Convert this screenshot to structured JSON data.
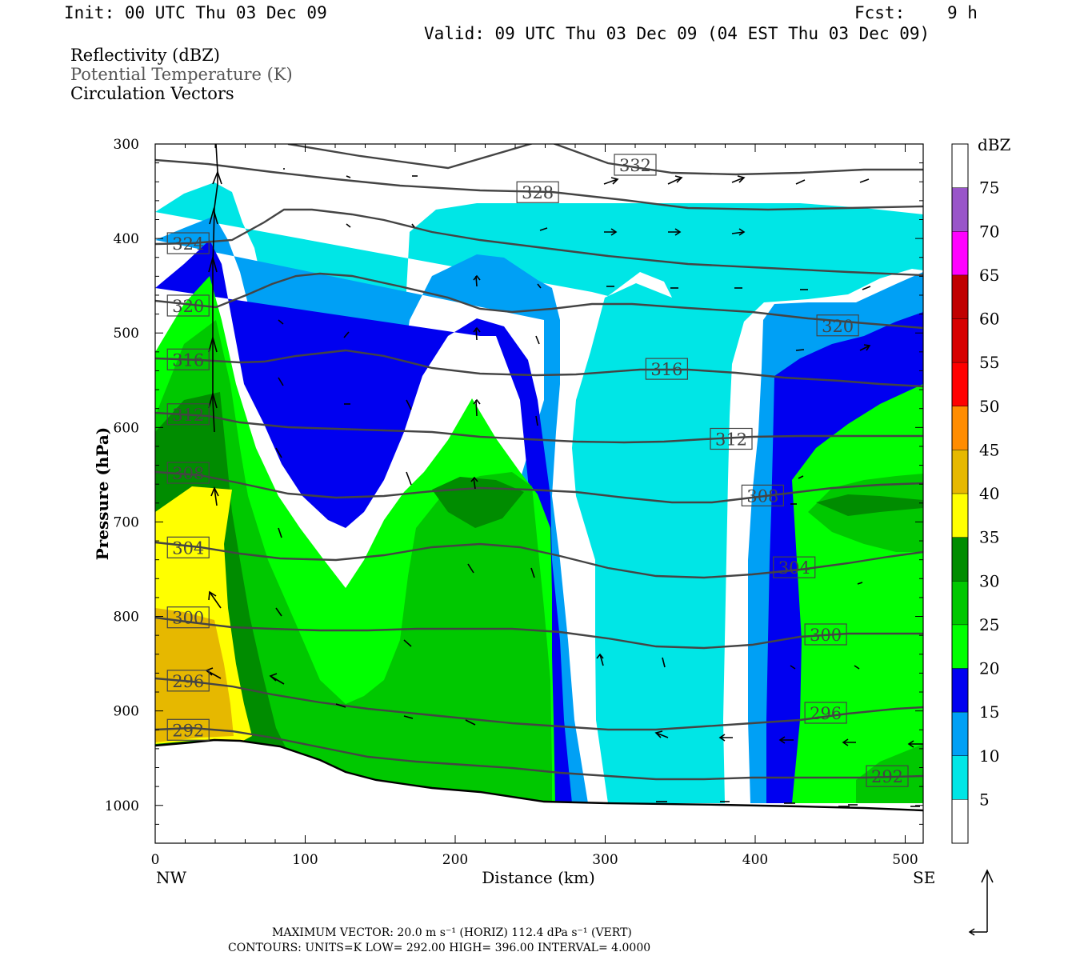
{
  "header": {
    "init": "Init: 00 UTC Thu 03 Dec 09",
    "fcst_label": "Fcst:",
    "fcst_value": "9 h",
    "valid": "Valid: 09 UTC Thu 03 Dec 09 (04 EST Thu 03 Dec 09)"
  },
  "fields": {
    "field1": "Reflectivity (dBZ)",
    "field2": "Potential Temperature (K)",
    "field3": "Circulation Vectors"
  },
  "axes": {
    "xlabel": "Distance (km)",
    "ylabel": "Pressure (hPa)",
    "left_end": "NW",
    "right_end": "SE"
  },
  "colorbar": {
    "unit": "dBZ",
    "levels": [
      "5",
      "10",
      "15",
      "20",
      "25",
      "30",
      "35",
      "40",
      "45",
      "50",
      "55",
      "60",
      "65",
      "70",
      "75"
    ],
    "colors": [
      "#ffffff",
      "#00e6e6",
      "#00a0f5",
      "#0000f0",
      "#00ff00",
      "#00c800",
      "#008c00",
      "#ffff00",
      "#e6b800",
      "#ff8c00",
      "#ff0000",
      "#d70000",
      "#c00000",
      "#ff00ff",
      "#9955c9",
      "#ffffff"
    ]
  },
  "footer": {
    "vector_line": "MAXIMUM VECTOR:  20.0 m s⁻¹ (HORIZ)        112.4 dPa s⁻¹ (VERT)",
    "contour_line": "CONTOURS:  UNITS=K   LOW=   292.00        HIGH=   396.00        INTERVAL=    4.0000"
  },
  "chart_data": {
    "type": "heatmap",
    "title": "",
    "xlabel": "Distance (km)",
    "ylabel": "Pressure (hPa)",
    "xlim": [
      0,
      512
    ],
    "ylim": [
      1040,
      300
    ],
    "x_ticks": [
      0,
      100,
      200,
      300,
      400,
      500
    ],
    "y_ticks": [
      300,
      400,
      500,
      600,
      700,
      800,
      900,
      1000
    ],
    "y_reversed": true,
    "series": [
      {
        "name": "Reflectivity (dBZ)",
        "kind": "filled-contour",
        "levels": [
          5,
          10,
          15,
          20,
          25,
          30,
          35,
          40,
          45,
          50,
          55,
          60,
          65,
          70,
          75
        ]
      },
      {
        "name": "Potential Temperature (K)",
        "kind": "contour-lines",
        "labels": [
          {
            "text": "332",
            "x": 320,
            "p": 322
          },
          {
            "text": "328",
            "x": 255,
            "p": 351
          },
          {
            "text": "324",
            "x": 22,
            "p": 405
          },
          {
            "text": "320",
            "x": 22,
            "p": 471
          },
          {
            "text": "320",
            "x": 455,
            "p": 492
          },
          {
            "text": "316",
            "x": 22,
            "p": 528
          },
          {
            "text": "316",
            "x": 341,
            "p": 538
          },
          {
            "text": "312",
            "x": 22,
            "p": 586
          },
          {
            "text": "312",
            "x": 384,
            "p": 612
          },
          {
            "text": "308",
            "x": 22,
            "p": 648
          },
          {
            "text": "308",
            "x": 405,
            "p": 672
          },
          {
            "text": "304",
            "x": 22,
            "p": 727
          },
          {
            "text": "304",
            "x": 426,
            "p": 748
          },
          {
            "text": "300",
            "x": 22,
            "p": 801
          },
          {
            "text": "300",
            "x": 447,
            "p": 819
          },
          {
            "text": "296",
            "x": 22,
            "p": 868
          },
          {
            "text": "296",
            "x": 447,
            "p": 902
          },
          {
            "text": "292",
            "x": 22,
            "p": 920
          },
          {
            "text": "292",
            "x": 488,
            "p": 969
          }
        ]
      },
      {
        "name": "Circulation Vectors",
        "kind": "vectors"
      }
    ],
    "contours": {
      "units": "K",
      "low": 292.0,
      "high": 396.0,
      "interval": 4.0
    },
    "max_vector": {
      "horiz": "20.0 m s-1",
      "vert": "112.4 dPa s-1"
    }
  }
}
